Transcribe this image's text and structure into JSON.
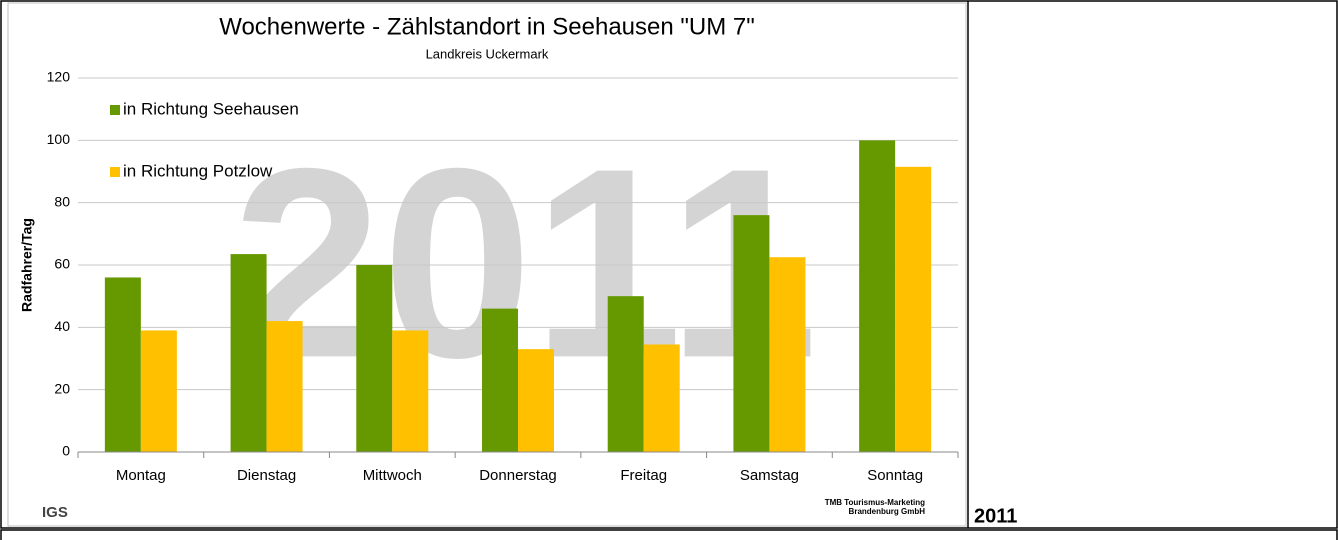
{
  "chart_data": {
    "type": "bar",
    "title": "Wochenwerte - Zählstandort in Seehausen \"UM 7\"",
    "subtitle": "Landkreis Uckermark",
    "y_label": "Radfahrer/Tag",
    "watermark": "2011",
    "categories": [
      "Montag",
      "Dienstag",
      "Mittwoch",
      "Donnerstag",
      "Freitag",
      "Samstag",
      "Sonntag"
    ],
    "series": [
      {
        "name": "in Richtung Seehausen",
        "color": "#669900",
        "values": [
          56,
          63.5,
          60,
          46,
          50,
          76,
          100
        ]
      },
      {
        "name": "in Richtung Potzlow",
        "color": "#ffc000",
        "values": [
          39,
          42,
          39,
          33,
          34.5,
          62.5,
          91.5
        ]
      }
    ],
    "ylim": [
      0,
      120
    ],
    "yticks": [
      0,
      20,
      40,
      60,
      80,
      100,
      120
    ],
    "grid": true,
    "legend": "upper left"
  },
  "footer": {
    "logo_left": "IGS",
    "logo_right": [
      "TMB Tourismus-Marketing",
      "Brandenburg GmbH"
    ],
    "side_label": "2011"
  }
}
